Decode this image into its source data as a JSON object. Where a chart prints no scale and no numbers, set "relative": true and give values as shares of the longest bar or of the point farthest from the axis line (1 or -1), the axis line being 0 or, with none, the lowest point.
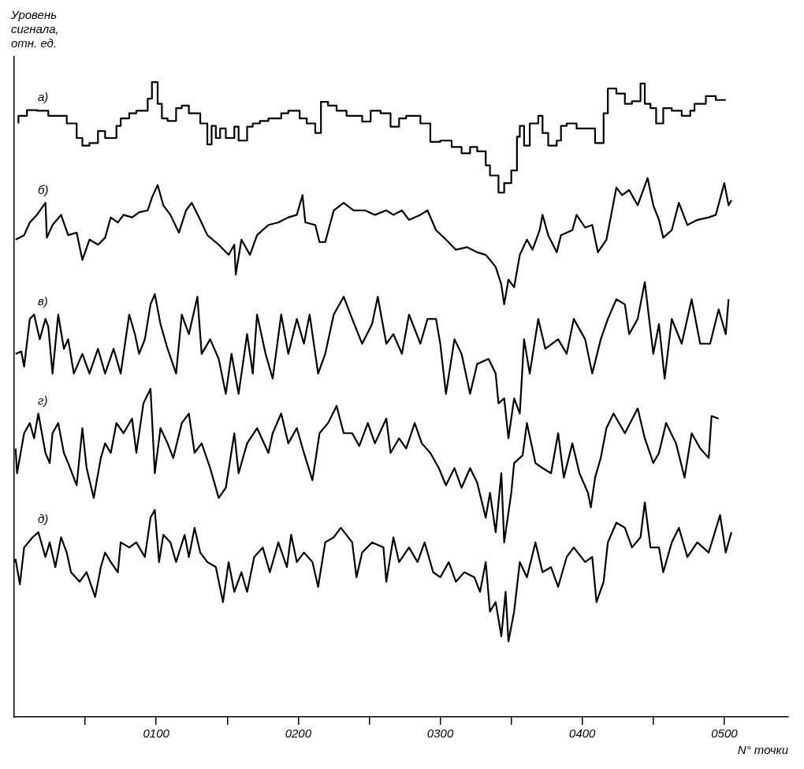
{
  "chart_data": {
    "type": "line",
    "ylabel": "Уровень сигнала, отн. ед.",
    "xlabel": "N° точки",
    "relative": true,
    "grid": false,
    "legend": false,
    "xlim": [
      0,
      545
    ],
    "xticks": [
      {
        "value": 50,
        "label": null
      },
      {
        "value": 100,
        "label": "0100"
      },
      {
        "value": 150,
        "label": null
      },
      {
        "value": 200,
        "label": "0200"
      },
      {
        "value": 250,
        "label": null
      },
      {
        "value": 300,
        "label": "0300"
      },
      {
        "value": 350,
        "label": null
      },
      {
        "value": 400,
        "label": "0400"
      },
      {
        "value": 450,
        "label": null
      },
      {
        "value": 500,
        "label": "0500"
      }
    ],
    "series": [
      {
        "name": "а)",
        "type": "step",
        "color": "#000000",
        "x": [
          3,
          9,
          16,
          24,
          29,
          37,
          44,
          48,
          53,
          59,
          64,
          72,
          75,
          81,
          86,
          94,
          97,
          101,
          104,
          108,
          114,
          118,
          123,
          131,
          136,
          139,
          142,
          145,
          149,
          155,
          158,
          164,
          168,
          173,
          179,
          188,
          193,
          201,
          206,
          212,
          216,
          221,
          227,
          234,
          245,
          251,
          258,
          265,
          271,
          276,
          286,
          293,
          300,
          308,
          315,
          321,
          326,
          332,
          335,
          341,
          345,
          350,
          354,
          356,
          359,
          363,
          369,
          372,
          376,
          382,
          385,
          389,
          396,
          400,
          409,
          415,
          418,
          424,
          430,
          435,
          441,
          444,
          448,
          452,
          457,
          463,
          470,
          476,
          479,
          487,
          494,
          501
        ],
        "values": [
          0.935,
          0.947,
          0.956,
          0.955,
          0.947,
          0.947,
          0.935,
          0.912,
          0.9,
          0.904,
          0.923,
          0.912,
          0.931,
          0.943,
          0.951,
          0.955,
          0.974,
          1,
          0.966,
          0.943,
          0.939,
          0.959,
          0.963,
          0.951,
          0.935,
          0.902,
          0.931,
          0.912,
          0.927,
          0.912,
          0.93,
          0.908,
          0.93,
          0.935,
          0.939,
          0.943,
          0.951,
          0.955,
          0.943,
          0.935,
          0.92,
          0.969,
          0.963,
          0.955,
          0.947,
          0.938,
          0.955,
          0.951,
          0.93,
          0.943,
          0.947,
          0.935,
          0.906,
          0.908,
          0.898,
          0.888,
          0.898,
          0.891,
          0.869,
          0.853,
          0.826,
          0.841,
          0.861,
          0.914,
          0.931,
          0.9,
          0.935,
          0.947,
          0.92,
          0.9,
          0.908,
          0.931,
          0.935,
          0.927,
          0.927,
          0.904,
          0.951,
          0.99,
          0.982,
          0.966,
          0.97,
          0.998,
          0.966,
          0.959,
          0.935,
          0.959,
          0.955,
          0.947,
          0.955,
          0.966,
          0.978,
          0.972
        ]
      },
      {
        "name": "б)",
        "color": "#000000",
        "x": [
          1,
          7,
          11,
          16,
          22,
          23,
          27,
          33,
          38,
          44,
          48,
          53,
          59,
          64,
          68,
          73,
          77,
          83,
          88,
          94,
          97,
          101,
          105,
          110,
          116,
          121,
          125,
          131,
          136,
          144,
          151,
          155,
          156,
          160,
          166,
          171,
          179,
          186,
          193,
          199,
          203,
          205,
          212,
          215,
          219,
          225,
          232,
          239,
          247,
          254,
          262,
          267,
          273,
          278,
          286,
          291,
          297,
          304,
          311,
          319,
          326,
          332,
          335,
          339,
          343,
          345,
          348,
          352,
          356,
          361,
          365,
          370,
          372,
          376,
          382,
          385,
          393,
          396,
          402,
          407,
          411,
          417,
          420,
          424,
          428,
          433,
          439,
          446,
          450,
          454,
          457,
          463,
          468,
          474,
          481,
          489,
          494,
          500,
          503,
          505
        ],
        "values": [
          0.752,
          0.759,
          0.779,
          0.791,
          0.81,
          0.755,
          0.775,
          0.791,
          0.759,
          0.763,
          0.72,
          0.752,
          0.744,
          0.755,
          0.787,
          0.779,
          0.791,
          0.787,
          0.795,
          0.798,
          0.818,
          0.838,
          0.806,
          0.791,
          0.763,
          0.798,
          0.81,
          0.783,
          0.759,
          0.744,
          0.728,
          0.744,
          0.697,
          0.752,
          0.728,
          0.759,
          0.775,
          0.779,
          0.787,
          0.791,
          0.822,
          0.779,
          0.775,
          0.748,
          0.748,
          0.798,
          0.81,
          0.798,
          0.798,
          0.791,
          0.798,
          0.791,
          0.798,
          0.783,
          0.791,
          0.798,
          0.767,
          0.752,
          0.736,
          0.74,
          0.732,
          0.728,
          0.72,
          0.709,
          0.681,
          0.65,
          0.689,
          0.677,
          0.728,
          0.752,
          0.736,
          0.767,
          0.791,
          0.759,
          0.732,
          0.759,
          0.767,
          0.791,
          0.771,
          0.775,
          0.732,
          0.752,
          0.787,
          0.834,
          0.822,
          0.83,
          0.806,
          0.849,
          0.806,
          0.783,
          0.755,
          0.767,
          0.81,
          0.775,
          0.783,
          0.787,
          0.791,
          0.841,
          0.806,
          0.814
        ]
      },
      {
        "name": "в)",
        "color": "#000000",
        "x": [
          1,
          5,
          7,
          11,
          14,
          18,
          22,
          24,
          27,
          31,
          35,
          38,
          42,
          48,
          53,
          59,
          64,
          70,
          75,
          81,
          85,
          88,
          92,
          96,
          99,
          103,
          108,
          114,
          118,
          123,
          129,
          132,
          138,
          144,
          149,
          153,
          158,
          164,
          168,
          171,
          177,
          182,
          188,
          193,
          199,
          204,
          208,
          214,
          219,
          225,
          232,
          238,
          245,
          252,
          256,
          262,
          267,
          273,
          278,
          286,
          291,
          297,
          300,
          304,
          310,
          315,
          321,
          326,
          334,
          339,
          341,
          345,
          348,
          352,
          356,
          359,
          363,
          369,
          374,
          383,
          389,
          394,
          402,
          407,
          413,
          418,
          424,
          430,
          433,
          439,
          444,
          450,
          454,
          458,
          463,
          470,
          477,
          483,
          490,
          496,
          501,
          503
        ],
        "values": [
          0.572,
          0.576,
          0.552,
          0.627,
          0.634,
          0.595,
          0.627,
          0.615,
          0.541,
          0.634,
          0.58,
          0.595,
          0.541,
          0.572,
          0.541,
          0.58,
          0.541,
          0.58,
          0.541,
          0.634,
          0.603,
          0.572,
          0.595,
          0.65,
          0.666,
          0.619,
          0.58,
          0.541,
          0.634,
          0.603,
          0.662,
          0.572,
          0.595,
          0.564,
          0.509,
          0.572,
          0.509,
          0.603,
          0.541,
          0.634,
          0.572,
          0.533,
          0.634,
          0.572,
          0.627,
          0.588,
          0.634,
          0.541,
          0.572,
          0.634,
          0.662,
          0.627,
          0.588,
          0.619,
          0.662,
          0.588,
          0.603,
          0.572,
          0.634,
          0.588,
          0.627,
          0.627,
          0.588,
          0.509,
          0.595,
          0.572,
          0.509,
          0.556,
          0.564,
          0.541,
          0.494,
          0.502,
          0.439,
          0.502,
          0.478,
          0.595,
          0.541,
          0.627,
          0.58,
          0.595,
          0.572,
          0.627,
          0.595,
          0.541,
          0.595,
          0.627,
          0.658,
          0.65,
          0.603,
          0.627,
          0.685,
          0.572,
          0.619,
          0.533,
          0.627,
          0.588,
          0.658,
          0.588,
          0.588,
          0.642,
          0.603,
          0.658
        ]
      },
      {
        "name": "г)",
        "color": "#000000",
        "x": [
          1,
          2,
          7,
          11,
          14,
          17,
          22,
          25,
          27,
          31,
          35,
          38,
          44,
          48,
          51,
          56,
          61,
          64,
          68,
          72,
          77,
          83,
          86,
          91,
          96,
          99,
          103,
          108,
          112,
          118,
          123,
          127,
          132,
          138,
          144,
          149,
          155,
          158,
          164,
          171,
          179,
          182,
          188,
          193,
          199,
          204,
          210,
          215,
          221,
          227,
          232,
          238,
          243,
          249,
          254,
          262,
          265,
          271,
          276,
          282,
          287,
          293,
          299,
          304,
          310,
          315,
          321,
          326,
          332,
          335,
          339,
          343,
          345,
          350,
          352,
          358,
          361,
          367,
          372,
          378,
          383,
          387,
          393,
          398,
          404,
          406,
          409,
          413,
          417,
          422,
          430,
          439,
          444,
          450,
          454,
          459,
          466,
          472,
          477,
          483,
          489,
          491,
          496
        ],
        "values": [
          0.423,
          0.384,
          0.447,
          0.463,
          0.439,
          0.478,
          0.416,
          0.4,
          0.447,
          0.463,
          0.416,
          0.4,
          0.365,
          0.455,
          0.392,
          0.345,
          0.408,
          0.431,
          0.416,
          0.463,
          0.447,
          0.47,
          0.416,
          0.494,
          0.517,
          0.384,
          0.455,
          0.431,
          0.408,
          0.463,
          0.478,
          0.416,
          0.431,
          0.392,
          0.345,
          0.361,
          0.447,
          0.384,
          0.431,
          0.455,
          0.416,
          0.447,
          0.478,
          0.431,
          0.455,
          0.416,
          0.373,
          0.447,
          0.463,
          0.49,
          0.447,
          0.447,
          0.427,
          0.463,
          0.431,
          0.47,
          0.416,
          0.439,
          0.423,
          0.463,
          0.431,
          0.416,
          0.392,
          0.365,
          0.392,
          0.361,
          0.392,
          0.369,
          0.314,
          0.353,
          0.291,
          0.384,
          0.275,
          0.353,
          0.4,
          0.412,
          0.463,
          0.4,
          0.392,
          0.384,
          0.447,
          0.377,
          0.431,
          0.384,
          0.353,
          0.33,
          0.377,
          0.408,
          0.455,
          0.478,
          0.447,
          0.486,
          0.439,
          0.4,
          0.416,
          0.463,
          0.431,
          0.377,
          0.447,
          0.423,
          0.408,
          0.474,
          0.47
        ]
      },
      {
        "name": "д)",
        "color": "#000000",
        "x": [
          0,
          1,
          4,
          7,
          13,
          17,
          22,
          25,
          29,
          33,
          37,
          40,
          46,
          51,
          57,
          61,
          64,
          68,
          73,
          75,
          81,
          86,
          92,
          96,
          99,
          102,
          105,
          110,
          114,
          120,
          123,
          127,
          131,
          136,
          142,
          147,
          151,
          155,
          160,
          164,
          169,
          175,
          180,
          186,
          192,
          195,
          199,
          204,
          210,
          214,
          219,
          225,
          230,
          238,
          241,
          245,
          252,
          260,
          262,
          267,
          271,
          278,
          284,
          289,
          295,
          300,
          306,
          311,
          317,
          324,
          328,
          332,
          335,
          339,
          343,
          346,
          348,
          352,
          356,
          361,
          367,
          372,
          378,
          383,
          389,
          394,
          402,
          407,
          410,
          415,
          418,
          424,
          430,
          435,
          441,
          444,
          448,
          454,
          457,
          463,
          468,
          474,
          481,
          489,
          497,
          501,
          505
        ],
        "values": [
          0.244,
          0.248,
          0.209,
          0.267,
          0.283,
          0.291,
          0.252,
          0.275,
          0.236,
          0.283,
          0.259,
          0.228,
          0.213,
          0.228,
          0.189,
          0.236,
          0.259,
          0.244,
          0.228,
          0.275,
          0.267,
          0.275,
          0.252,
          0.314,
          0.326,
          0.244,
          0.287,
          0.275,
          0.244,
          0.287,
          0.252,
          0.298,
          0.259,
          0.244,
          0.236,
          0.181,
          0.244,
          0.197,
          0.228,
          0.197,
          0.252,
          0.267,
          0.228,
          0.275,
          0.236,
          0.287,
          0.244,
          0.259,
          0.244,
          0.205,
          0.275,
          0.283,
          0.298,
          0.275,
          0.22,
          0.259,
          0.275,
          0.267,
          0.213,
          0.283,
          0.244,
          0.267,
          0.244,
          0.275,
          0.228,
          0.22,
          0.244,
          0.213,
          0.228,
          0.22,
          0.197,
          0.244,
          0.166,
          0.181,
          0.127,
          0.197,
          0.119,
          0.166,
          0.244,
          0.22,
          0.275,
          0.228,
          0.236,
          0.205,
          0.252,
          0.267,
          0.244,
          0.252,
          0.181,
          0.213,
          0.275,
          0.306,
          0.298,
          0.267,
          0.283,
          0.338,
          0.267,
          0.267,
          0.228,
          0.275,
          0.298,
          0.252,
          0.275,
          0.259,
          0.318,
          0.259,
          0.291
        ]
      }
    ]
  }
}
